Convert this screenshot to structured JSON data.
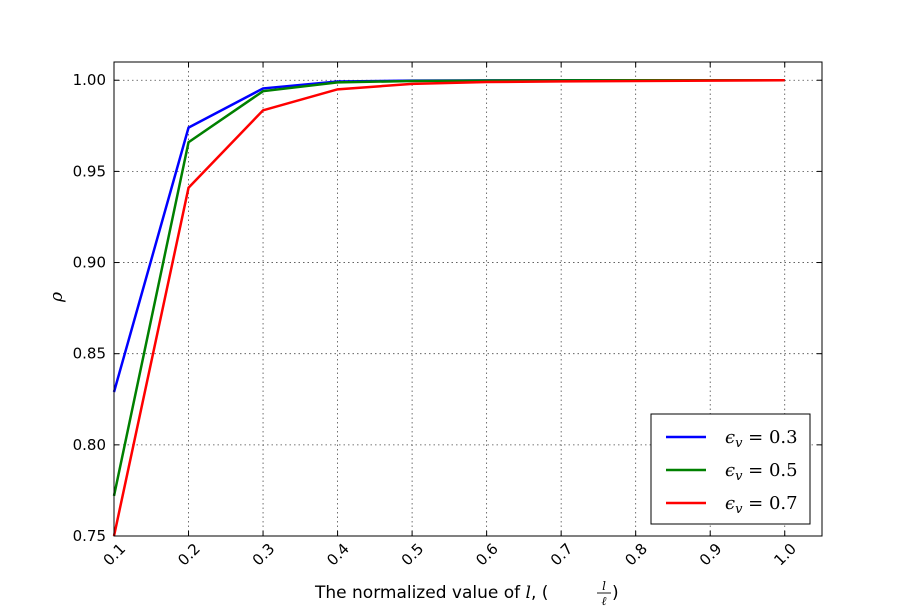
{
  "chart_data": {
    "type": "line",
    "x": [
      0.1,
      0.2,
      0.3,
      0.4,
      0.5,
      0.6,
      0.7,
      0.8,
      0.9,
      1.0
    ],
    "xlim": [
      0.1,
      1.05
    ],
    "ylim": [
      0.75,
      1.01
    ],
    "xticks": [
      "0.1",
      "0.2",
      "0.3",
      "0.4",
      "0.5",
      "0.6",
      "0.7",
      "0.8",
      "0.9",
      "1.0"
    ],
    "yticks": [
      "0.75",
      "0.80",
      "0.85",
      "0.90",
      "0.95",
      "1.00"
    ],
    "ylabel": "ρ",
    "xlabel": {
      "prefix": "The normalized value of ",
      "var": "l",
      "mid": ", ( ",
      "frac_num": "l",
      "frac_den": "ℓ",
      "suffix": " )"
    },
    "grid": true,
    "legend_position": "lower-right",
    "series": [
      {
        "name": "ϵv = 0.3",
        "name_parts": {
          "sym": "ϵ",
          "sub": "v",
          "rest": " = 0.3"
        },
        "color": "#0000ff",
        "values": [
          0.829,
          0.974,
          0.9955,
          0.9993,
          0.9998,
          0.9999,
          1.0,
          1.0,
          1.0,
          1.0
        ]
      },
      {
        "name": "ϵv = 0.5",
        "name_parts": {
          "sym": "ϵ",
          "sub": "v",
          "rest": " = 0.5"
        },
        "color": "#008000",
        "values": [
          0.772,
          0.966,
          0.994,
          0.9988,
          0.9996,
          0.9998,
          0.9999,
          1.0,
          1.0,
          1.0
        ]
      },
      {
        "name": "ϵv = 0.7",
        "name_parts": {
          "sym": "ϵ",
          "sub": "v",
          "rest": " = 0.7"
        },
        "color": "#ff0000",
        "values": [
          0.75,
          0.941,
          0.9835,
          0.995,
          0.998,
          0.999,
          0.9994,
          0.9996,
          0.9998,
          1.0
        ]
      }
    ]
  }
}
